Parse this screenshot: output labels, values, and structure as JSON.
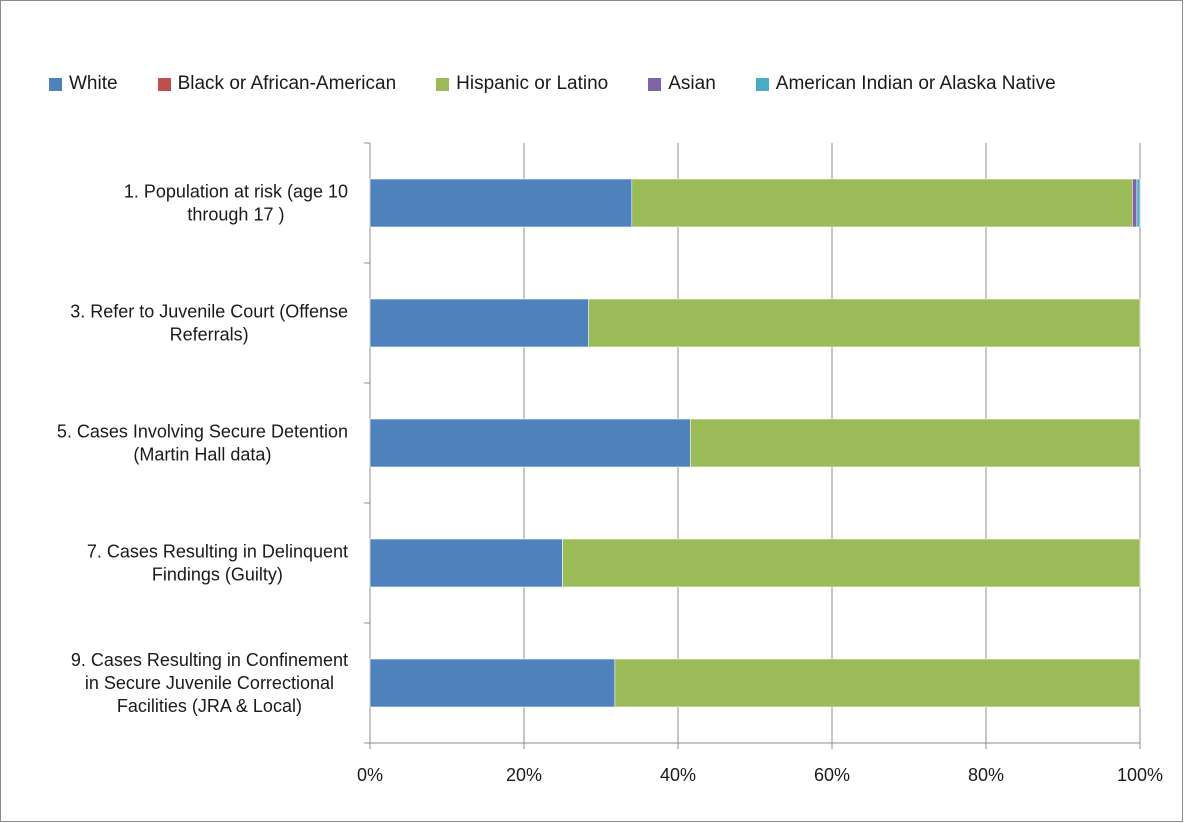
{
  "chart_data": {
    "type": "bar",
    "orientation": "horizontal",
    "stacked": "percent",
    "categories": [
      [
        "1. Population at risk (age 10",
        "through 17 )"
      ],
      [
        "3. Refer to Juvenile Court (Offense",
        "Referrals)"
      ],
      [
        "5. Cases Involving Secure Detention",
        "(Martin Hall data)"
      ],
      [
        "7. Cases Resulting in Delinquent",
        "Findings (Guilty)"
      ],
      [
        "9. Cases Resulting in Confinement",
        "in Secure Juvenile Correctional",
        "Facilities (JRA & Local)"
      ]
    ],
    "series": [
      {
        "name": "White",
        "color": "#4F81BD",
        "values": [
          34,
          28.4,
          41.6,
          25,
          31.8
        ]
      },
      {
        "name": "Black or African-American",
        "color": "#C0504D",
        "values": [
          0,
          0,
          0,
          0,
          0
        ]
      },
      {
        "name": "Hispanic or Latino",
        "color": "#9BBB59",
        "values": [
          65,
          71.6,
          58.4,
          75,
          68.2
        ]
      },
      {
        "name": "Asian",
        "color": "#8064A2",
        "values": [
          0.6,
          0,
          0,
          0,
          0
        ]
      },
      {
        "name": "American Indian or Alaska Native",
        "color": "#4BACC6",
        "values": [
          0.4,
          0,
          0,
          0,
          0
        ]
      }
    ],
    "xlim": [
      0,
      100
    ],
    "xticks": [
      "0%",
      "20%",
      "40%",
      "60%",
      "80%",
      "100%"
    ],
    "grid": true,
    "legend_position": "top"
  }
}
